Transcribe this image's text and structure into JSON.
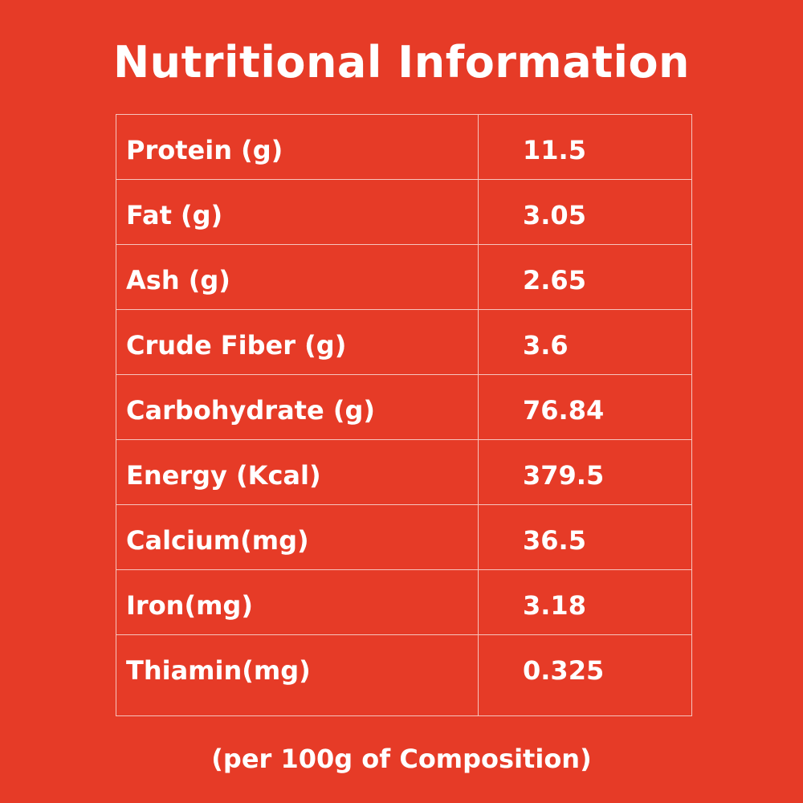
{
  "title": "Nutritional Information",
  "rows": [
    {
      "label": "Protein (g)",
      "value": "11.5"
    },
    {
      "label": "Fat (g)",
      "value": "3.05"
    },
    {
      "label": "Ash (g)",
      "value": "2.65"
    },
    {
      "label": "Crude Fiber (g)",
      "value": "3.6"
    },
    {
      "label": "Carbohydrate (g)",
      "value": "76.84"
    },
    {
      "label": "Energy (Kcal)",
      "value": "379.5"
    },
    {
      "label": "Calcium(mg)",
      "value": "36.5"
    },
    {
      "label": "Iron(mg)",
      "value": "3.18"
    },
    {
      "label": "Thiamin(mg)",
      "value": "0.325"
    }
  ],
  "footnote": "(per 100g of Composition)",
  "colors": {
    "background": "#e63b27",
    "text": "#ffffff",
    "grid": "#f6c4bd"
  }
}
